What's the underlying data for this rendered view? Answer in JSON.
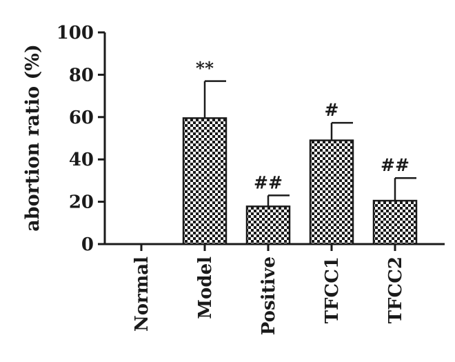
{
  "chart_data": {
    "type": "bar",
    "title": "",
    "xlabel": "",
    "ylabel": "abortion ratio (%)",
    "ylim": [
      0,
      100
    ],
    "yticks": [
      0,
      20,
      40,
      60,
      80,
      100
    ],
    "categories": [
      "Normal",
      "Model",
      "Positive",
      "TFCC1",
      "TFCC2"
    ],
    "values": [
      0,
      59.5,
      17.8,
      49,
      20.5
    ],
    "error_upper": [
      0,
      77,
      23,
      57.3,
      31.2
    ],
    "annotations": [
      "",
      "**",
      "##",
      "#",
      "##"
    ],
    "bar_fill": "checkerboard",
    "colors": {
      "bar_dark": "#1a1a1a",
      "bar_light": "#ffffff",
      "axis": "#1a1a1a"
    },
    "grid": false
  }
}
